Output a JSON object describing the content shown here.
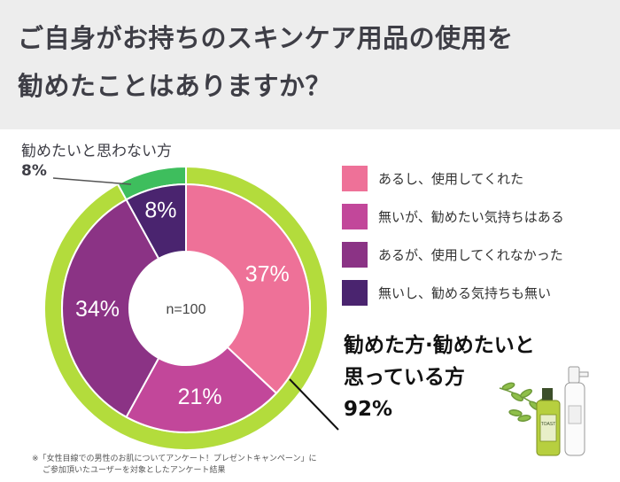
{
  "title": {
    "line1": "ご自身がお持ちのスキンケア用品の使用を",
    "line2": "勧めたことはありますか？"
  },
  "chart_data": {
    "type": "pie",
    "center_label": "n=100",
    "slices": [
      {
        "name": "あるし、使用してくれた",
        "value": 37,
        "label": "37%",
        "color": "#ee7198"
      },
      {
        "name": "無いが、勧めたい気持ちはある",
        "value": 21,
        "label": "21%",
        "color": "#c2479a"
      },
      {
        "name": "あるが、使用してくれなかった",
        "value": 34,
        "label": "34%",
        "color": "#8b3385"
      },
      {
        "name": "無いし、勧める気持ちも無い",
        "value": 8,
        "label": "8%",
        "color": "#4a246f"
      }
    ],
    "outer_ring": [
      {
        "name": "勧めた方·勧めたいと思っている方",
        "value": 92,
        "color": "#b3dc3c"
      },
      {
        "name": "勧めたいと思わない方",
        "value": 8,
        "color": "#3ebe5d"
      }
    ],
    "legend_position": "right"
  },
  "callouts": {
    "not_recommend_label": "勧めたいと思わない方",
    "not_recommend_value": "8%",
    "recommend_line1": "勧めた方·勧めたいと",
    "recommend_line2": "思っている方",
    "recommend_value": "92%"
  },
  "footnote": {
    "line1": "※「女性目線での男性のお肌についてアンケート！プレゼントキャンペーン」に",
    "line2": "ご参加頂いたユーザーを対象としたアンケート結果"
  },
  "product_illustration": {
    "bottle_label": "TOAST"
  }
}
